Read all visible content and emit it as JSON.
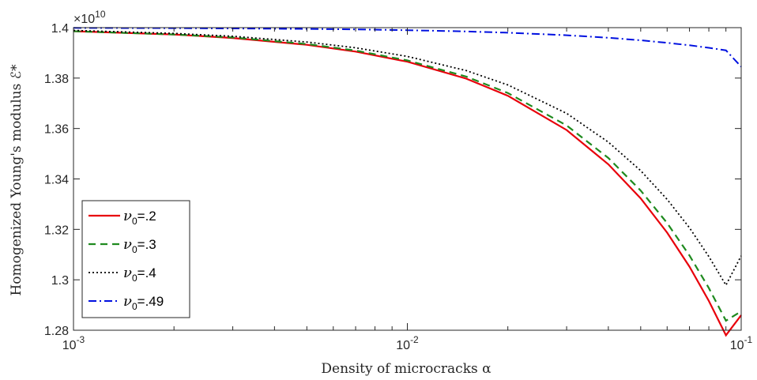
{
  "chart_data": {
    "type": "line",
    "xlabel": "Density of microcracks α",
    "ylabel": "Homogenized Young's modulus ℰ*",
    "xscale": "log",
    "xlim": [
      0.001,
      0.1
    ],
    "ylim": [
      12800000000.0,
      14000000000.0
    ],
    "y_multiplier_label": "×10",
    "y_multiplier_exp": "10",
    "x_ticks": [
      {
        "value": 0.001,
        "base": "10",
        "exp": "-3"
      },
      {
        "value": 0.01,
        "base": "10",
        "exp": "-2"
      },
      {
        "value": 0.1,
        "base": "10",
        "exp": "-1"
      }
    ],
    "y_ticks": [
      {
        "value": 1.28,
        "label": "1.28"
      },
      {
        "value": 1.3,
        "label": "1.3"
      },
      {
        "value": 1.32,
        "label": "1.32"
      },
      {
        "value": 1.34,
        "label": "1.34"
      },
      {
        "value": 1.36,
        "label": "1.36"
      },
      {
        "value": 1.38,
        "label": "1.38"
      },
      {
        "value": 1.4,
        "label": "1.4"
      }
    ],
    "grid": false,
    "legend_position": "bottom-left",
    "x": [
      0.001,
      0.002,
      0.003,
      0.005,
      0.007,
      0.01,
      0.015,
      0.02,
      0.03,
      0.04,
      0.05,
      0.06,
      0.07,
      0.08,
      0.09,
      0.1
    ],
    "series": [
      {
        "name_symbol": "ν",
        "name_sub": "0",
        "name_val": "=.2",
        "color": "#e8000b",
        "dash": "",
        "width": 2.2,
        "values": [
          1.3986,
          1.3973,
          1.3959,
          1.3932,
          1.3905,
          1.3865,
          1.3798,
          1.373,
          1.3594,
          1.3458,
          1.3323,
          1.3187,
          1.3052,
          1.2916,
          1.278,
          1.286
        ]
      },
      {
        "name_symbol": "ν",
        "name_sub": "0",
        "name_val": "=.3",
        "color": "#1f8a1f",
        "dash": "9,6",
        "width": 2.2,
        "values": [
          1.3986,
          1.3973,
          1.3961,
          1.3935,
          1.3909,
          1.387,
          1.3806,
          1.3741,
          1.3612,
          1.3483,
          1.3354,
          1.3225,
          1.3096,
          1.2967,
          1.2838,
          1.2875
        ]
      },
      {
        "name_symbol": "ν",
        "name_sub": "0",
        "name_val": "=.4",
        "color": "#000000",
        "dash": "2,3",
        "width": 1.8,
        "values": [
          1.3989,
          1.3977,
          1.3966,
          1.3943,
          1.392,
          1.3886,
          1.383,
          1.3773,
          1.366,
          1.3546,
          1.3433,
          1.3319,
          1.3206,
          1.3092,
          1.2979,
          1.3095
        ]
      },
      {
        "name_symbol": "ν",
        "name_sub": "0",
        "name_val": "=.49",
        "color": "#0010e0",
        "dash": "10,4,2,4",
        "width": 2,
        "values": [
          1.3999,
          1.3998,
          1.3997,
          1.3995,
          1.3993,
          1.399,
          1.3985,
          1.398,
          1.397,
          1.396,
          1.395,
          1.394,
          1.393,
          1.392,
          1.391,
          1.3845
        ]
      }
    ]
  }
}
